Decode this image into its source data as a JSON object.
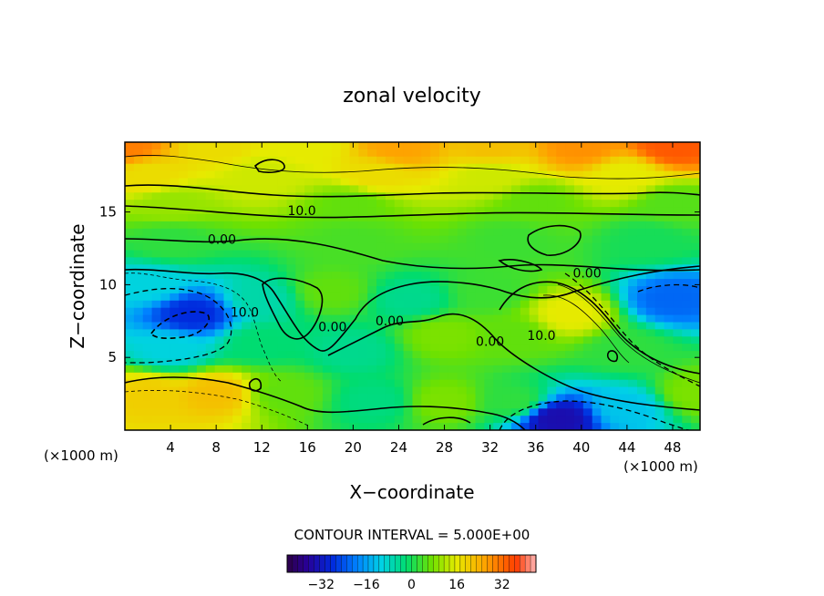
{
  "chart_data": {
    "type": "heatmap",
    "title": "zonal velocity",
    "xlabel": "X−coordinate",
    "ylabel": "Z−coordinate",
    "x_unit_left": "(×1000 m)",
    "x_unit_right": "(×1000 m)",
    "xlim": [
      0,
      50.4
    ],
    "ylim": [
      0,
      19.8
    ],
    "x_ticks": [
      4,
      8,
      12,
      16,
      20,
      24,
      28,
      32,
      36,
      40,
      44,
      48
    ],
    "y_ticks": [
      5,
      10,
      15
    ],
    "contour_interval_text": "CONTOUR INTERVAL = 5.000E+00",
    "contour_labels": [
      {
        "text": "10.0",
        "x": 15.5,
        "y": 14.8
      },
      {
        "text": "0.00",
        "x": 8.5,
        "y": 12.8
      },
      {
        "text": "10.0",
        "x": 10.5,
        "y": 7.8
      },
      {
        "text": "0.00",
        "x": 18.2,
        "y": 6.8
      },
      {
        "text": "0.00",
        "x": 23.2,
        "y": 7.2
      },
      {
        "text": "0.00",
        "x": 32.0,
        "y": 5.8
      },
      {
        "text": "10.0",
        "x": 36.5,
        "y": 6.2
      },
      {
        "text": "0.00",
        "x": 40.5,
        "y": 10.5
      }
    ],
    "colorbar": {
      "min": -44,
      "max": 44,
      "ticks": [
        -32,
        -16,
        0,
        16,
        32
      ],
      "tick_labels": [
        "−32",
        "−16",
        "0",
        "16",
        "32"
      ]
    },
    "field_centers": [
      {
        "x": 0,
        "y": 19.5,
        "v": 30
      },
      {
        "x": 8,
        "y": 19.5,
        "v": 18
      },
      {
        "x": 16,
        "y": 19.5,
        "v": 16
      },
      {
        "x": 24,
        "y": 19.5,
        "v": 26
      },
      {
        "x": 32,
        "y": 19.5,
        "v": 22
      },
      {
        "x": 40,
        "y": 19.5,
        "v": 28
      },
      {
        "x": 48,
        "y": 19.5,
        "v": 34
      },
      {
        "x": 2,
        "y": 17.5,
        "v": 18
      },
      {
        "x": 12,
        "y": 17.5,
        "v": 14
      },
      {
        "x": 22,
        "y": 17.5,
        "v": 18
      },
      {
        "x": 32,
        "y": 17.5,
        "v": 14
      },
      {
        "x": 44,
        "y": 17.5,
        "v": 16
      },
      {
        "x": 4,
        "y": 15.5,
        "v": 10
      },
      {
        "x": 20,
        "y": 15.5,
        "v": 6
      },
      {
        "x": 36,
        "y": 15.5,
        "v": 6
      },
      {
        "x": 48,
        "y": 15.5,
        "v": 5
      },
      {
        "x": 4,
        "y": 13.0,
        "v": 2
      },
      {
        "x": 20,
        "y": 13.0,
        "v": 4
      },
      {
        "x": 34,
        "y": 13.0,
        "v": 3
      },
      {
        "x": 46,
        "y": 13.0,
        "v": 0
      },
      {
        "x": 2,
        "y": 10.0,
        "v": -10
      },
      {
        "x": 6,
        "y": 8.0,
        "v": -28
      },
      {
        "x": 12,
        "y": 9.0,
        "v": -6
      },
      {
        "x": 18,
        "y": 9.5,
        "v": 6
      },
      {
        "x": 25,
        "y": 9.0,
        "v": -4
      },
      {
        "x": 32,
        "y": 9.5,
        "v": 3
      },
      {
        "x": 39,
        "y": 8.0,
        "v": 16
      },
      {
        "x": 48,
        "y": 9.0,
        "v": -22
      },
      {
        "x": 4,
        "y": 5.5,
        "v": -10
      },
      {
        "x": 12,
        "y": 6.0,
        "v": -2
      },
      {
        "x": 20,
        "y": 5.5,
        "v": -4
      },
      {
        "x": 28,
        "y": 6.5,
        "v": 8
      },
      {
        "x": 34,
        "y": 6.5,
        "v": 6
      },
      {
        "x": 44,
        "y": 5.5,
        "v": 2
      },
      {
        "x": 2,
        "y": 2.5,
        "v": 20
      },
      {
        "x": 8,
        "y": 2.5,
        "v": 22
      },
      {
        "x": 14,
        "y": 2.5,
        "v": 6
      },
      {
        "x": 22,
        "y": 2.0,
        "v": -3
      },
      {
        "x": 28,
        "y": 2.0,
        "v": 8
      },
      {
        "x": 34,
        "y": 2.0,
        "v": 2
      },
      {
        "x": 38,
        "y": 0.8,
        "v": -34
      },
      {
        "x": 44,
        "y": 1.5,
        "v": -12
      },
      {
        "x": 50,
        "y": 2.5,
        "v": 8
      }
    ]
  }
}
